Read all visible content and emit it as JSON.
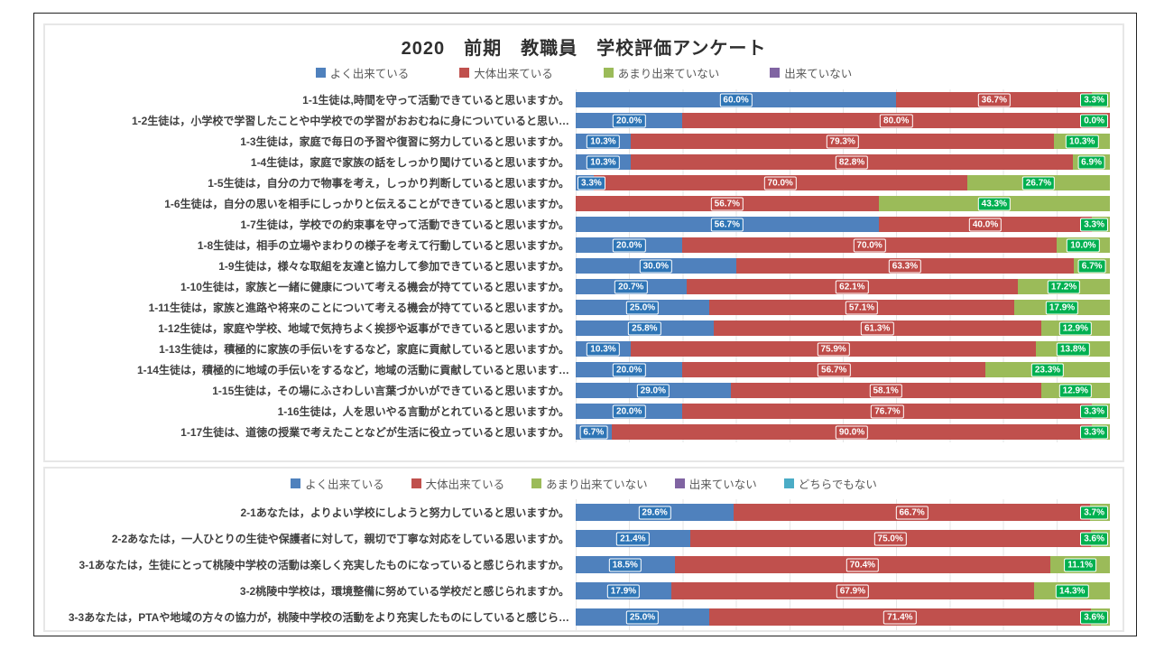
{
  "page": {
    "title": "2020　前期　教職員　学校評価アンケート"
  },
  "colors": {
    "series_blue": "#4F81BD",
    "series_red": "#C0504D",
    "series_green": "#9BBB59",
    "series_purple": "#8064A2",
    "series_lightblue": "#4BACC6",
    "badge_blue": "#2E75B6",
    "badge_red": "#BE4B48",
    "badge_green": "#00B050",
    "frame_border": "#222222",
    "panel_border": "#E7E7E7"
  },
  "chart_data": [
    {
      "type": "bar",
      "stacked": true,
      "orientation": "horizontal",
      "title": "2020　前期　教職員　学校評価アンケート",
      "value_unit": "%",
      "x_range": [
        0,
        100
      ],
      "legend_position": "top",
      "grid": true,
      "categories": [
        "1-1生徒は,時間を守って活動できていると思いますか。",
        "1-2生徒は，小学校で学習したことや中学校での学習がおおむねに身についていると思い…",
        "1-3生徒は，家庭で毎日の予習や復習に努力していると思いますか。",
        "1-4生徒は，家庭で家族の話をしっかり聞けていると思いますか。",
        "1-5生徒は，自分の力で物事を考え，しっかり判断していると思いますか。",
        "1-6生徒は，自分の思いを相手にしっかりと伝えることができていると思いますか。",
        "1-7生徒は，学校での約束事を守って活動できていると思いますか。",
        "1-8生徒は，相手の立場やまわりの様子を考えて行動していると思いますか。",
        "1-9生徒は，様々な取組を友達と協力して参加できていると思いますか。",
        "1-10生徒は，家族と一緒に健康について考える機会が持てていると思いますか。",
        "1-11生徒は，家族と進路や将来のことについて考える機会が持てていると思いますか。",
        "1-12生徒は，家庭や学校、地域で気持ちよく挨拶や返事ができていると思いますか。",
        "1-13生徒は，積極的に家族の手伝いをするなど，家庭に貢献していると思いますか。",
        "1-14生徒は，積極的に地域の手伝いをするなど，地域の活動に貢献していると思います…",
        "1-15生徒は，その場にふさわしい言葉づかいができていると思いますか。",
        "1-16生徒は，人を思いやる言動がとれていると思いますか。",
        "1-17生徒は、道徳の授業で考えたことなどが生活に役立っていると思いますか。"
      ],
      "series": [
        {
          "key": "yoku",
          "name": "よく出来ている",
          "color": "#4F81BD",
          "badge": "#2E75B6",
          "values": [
            60.0,
            20.0,
            10.3,
            10.3,
            3.3,
            0,
            56.7,
            20.0,
            30.0,
            20.7,
            25.0,
            25.8,
            10.3,
            20.0,
            29.0,
            20.0,
            6.7
          ],
          "labels": [
            "60.0%",
            "20.0%",
            "10.3%",
            "10.3%",
            "3.3%",
            "",
            "56.7%",
            "20.0%",
            "30.0%",
            "20.7%",
            "25.0%",
            "25.8%",
            "10.3%",
            "20.0%",
            "29.0%",
            "20.0%",
            "6.7%"
          ]
        },
        {
          "key": "daitai",
          "name": "大体出来ている",
          "color": "#C0504D",
          "badge": "#BE4B48",
          "values": [
            36.7,
            80.0,
            79.3,
            82.8,
            70.0,
            56.7,
            40.0,
            70.0,
            63.3,
            62.1,
            57.1,
            61.3,
            75.9,
            56.7,
            58.1,
            76.7,
            90.0
          ],
          "labels": [
            "36.7%",
            "80.0%",
            "79.3%",
            "82.8%",
            "70.0%",
            "56.7%",
            "40.0%",
            "70.0%",
            "63.3%",
            "62.1%",
            "57.1%",
            "61.3%",
            "75.9%",
            "56.7%",
            "58.1%",
            "76.7%",
            "90.0%"
          ]
        },
        {
          "key": "amari",
          "name": "あまり出来ていない",
          "color": "#9BBB59",
          "badge": "#00B050",
          "values": [
            3.3,
            0.0,
            10.3,
            6.9,
            26.7,
            43.3,
            3.3,
            10.0,
            6.7,
            17.2,
            17.9,
            12.9,
            13.8,
            23.3,
            12.9,
            3.3,
            3.3
          ],
          "labels": [
            "3.3%",
            "0.0%",
            "10.3%",
            "6.9%",
            "26.7%",
            "43.3%",
            "3.3%",
            "10.0%",
            "6.7%",
            "17.2%",
            "17.9%",
            "12.9%",
            "13.8%",
            "23.3%",
            "12.9%",
            "3.3%",
            "3.3%"
          ]
        },
        {
          "key": "dekinai",
          "name": "出来ていない",
          "color": "#8064A2",
          "badge": "#8064A2",
          "values": [
            0,
            0,
            0,
            0,
            0,
            0,
            0,
            0,
            0,
            0,
            0,
            0,
            0,
            0,
            0,
            0,
            0
          ]
        }
      ]
    },
    {
      "type": "bar",
      "stacked": true,
      "orientation": "horizontal",
      "value_unit": "%",
      "x_range": [
        0,
        100
      ],
      "legend_position": "top",
      "grid": true,
      "categories": [
        "2-1あなたは，よりよい学校にしようと努力していると思いますか。",
        "2-2あなたは，一人ひとりの生徒や保護者に対して，親切で丁寧な対応をしている思いますか。",
        "3-1あなたは，生徒にとって桃陵中学校の活動は楽しく充実したものになっていると感じられますか。",
        "3-2桃陵中学校は，環境整備に努めている学校だと感じられますか。",
        "3-3あなたは，PTAや地域の方々の協力が，桃陵中学校の活動をより充実したものにしていると感じら…"
      ],
      "series": [
        {
          "key": "yoku",
          "name": "よく出来ている",
          "color": "#4F81BD",
          "badge": "#2E75B6",
          "values": [
            29.6,
            21.4,
            18.5,
            17.9,
            25.0
          ],
          "labels": [
            "29.6%",
            "21.4%",
            "18.5%",
            "17.9%",
            "25.0%"
          ]
        },
        {
          "key": "daitai",
          "name": "大体出来ている",
          "color": "#C0504D",
          "badge": "#BE4B48",
          "values": [
            66.7,
            75.0,
            70.4,
            67.9,
            71.4
          ],
          "labels": [
            "66.7%",
            "75.0%",
            "70.4%",
            "67.9%",
            "71.4%"
          ]
        },
        {
          "key": "amari",
          "name": "あまり出来ていない",
          "color": "#9BBB59",
          "badge": "#00B050",
          "values": [
            3.7,
            3.6,
            11.1,
            14.3,
            3.6
          ],
          "labels": [
            "3.7%",
            "3.6%",
            "11.1%",
            "14.3%",
            "3.6%"
          ]
        },
        {
          "key": "dekinai",
          "name": "出来ていない",
          "color": "#8064A2",
          "badge": "#8064A2",
          "values": [
            0,
            0,
            0,
            0,
            0
          ]
        },
        {
          "key": "dochira",
          "name": "どちらでもない",
          "color": "#4BACC6",
          "badge": "#4BACC6",
          "values": [
            0,
            0,
            0,
            0,
            0
          ]
        }
      ]
    }
  ]
}
